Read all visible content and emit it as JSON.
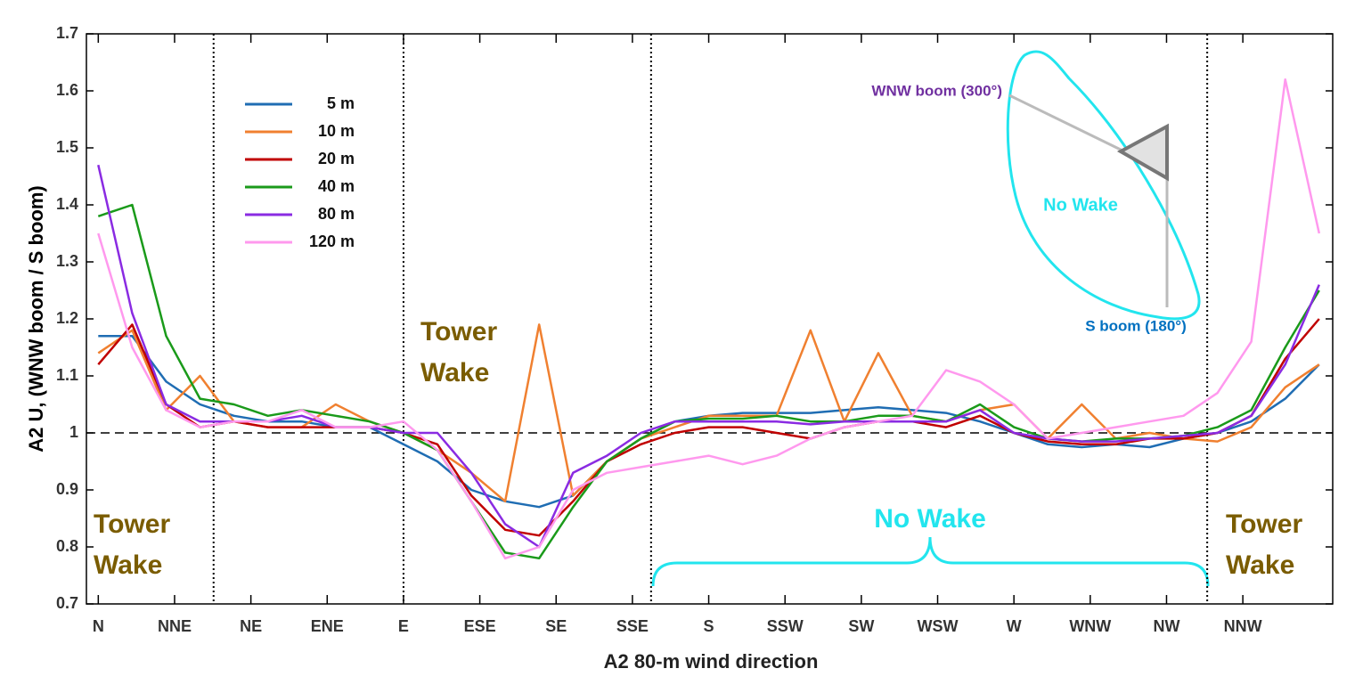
{
  "chart_data": {
    "type": "line",
    "ylabel": "A2 U, (WNW boom / S boom)",
    "xlabel": "A2 80-m wind direction",
    "xlim": [
      -3.5,
      364
    ],
    "ylim": [
      0.7,
      1.7
    ],
    "yticks": [
      0.7,
      0.8,
      0.9,
      1,
      1.1,
      1.2,
      1.3,
      1.4,
      1.5,
      1.6,
      1.7
    ],
    "xticks": [
      {
        "value": 0,
        "label": "N"
      },
      {
        "value": 22.5,
        "label": "NNE"
      },
      {
        "value": 45,
        "label": "NE"
      },
      {
        "value": 67.5,
        "label": "ENE"
      },
      {
        "value": 90,
        "label": "E"
      },
      {
        "value": 112.5,
        "label": "ESE"
      },
      {
        "value": 135,
        "label": "SE"
      },
      {
        "value": 157.5,
        "label": "SSE"
      },
      {
        "value": 180,
        "label": "S"
      },
      {
        "value": 202.5,
        "label": "SSW"
      },
      {
        "value": 225,
        "label": "SW"
      },
      {
        "value": 247.5,
        "label": "WSW"
      },
      {
        "value": 270,
        "label": "W"
      },
      {
        "value": 292.5,
        "label": "WNW"
      },
      {
        "value": 315,
        "label": "NW"
      },
      {
        "value": 337.5,
        "label": "NNW"
      }
    ],
    "grid": false,
    "legend": "upper left",
    "reference_line": 1,
    "sector_lines": [
      34,
      90,
      163,
      327
    ],
    "x": [
      0,
      10,
      20,
      30,
      40,
      50,
      60,
      70,
      80,
      90,
      100,
      110,
      120,
      130,
      140,
      150,
      160,
      170,
      180,
      190,
      200,
      210,
      220,
      230,
      240,
      250,
      260,
      270,
      280,
      290,
      300,
      310,
      320,
      330,
      340,
      350,
      360
    ],
    "series": [
      {
        "name": "5 m",
        "color": "#1f6db3",
        "values": [
          1.17,
          1.17,
          1.09,
          1.05,
          1.03,
          1.02,
          1.02,
          1.01,
          1.01,
          0.98,
          0.95,
          0.9,
          0.88,
          0.87,
          0.89,
          0.95,
          0.99,
          1.02,
          1.03,
          1.035,
          1.035,
          1.035,
          1.04,
          1.045,
          1.04,
          1.035,
          1.02,
          1.0,
          0.98,
          0.975,
          0.98,
          0.975,
          0.99,
          1.0,
          1.02,
          1.06,
          1.12
        ]
      },
      {
        "name": "10 m",
        "color": "#f08030",
        "values": [
          1.14,
          1.18,
          1.04,
          1.1,
          1.02,
          1.01,
          1.01,
          1.05,
          1.02,
          1.0,
          0.97,
          0.93,
          0.88,
          1.19,
          0.89,
          0.95,
          0.99,
          1.01,
          1.03,
          1.03,
          1.03,
          1.18,
          1.02,
          1.14,
          1.03,
          1.02,
          1.04,
          1.05,
          0.99,
          1.05,
          0.99,
          1.0,
          0.99,
          0.985,
          1.01,
          1.08,
          1.12
        ]
      },
      {
        "name": "20 m",
        "color": "#c00000",
        "values": [
          1.12,
          1.19,
          1.05,
          1.01,
          1.02,
          1.01,
          1.01,
          1.01,
          1.01,
          1.0,
          0.98,
          0.89,
          0.83,
          0.82,
          0.88,
          0.95,
          0.98,
          1.0,
          1.01,
          1.01,
          1.0,
          0.99,
          1.01,
          1.02,
          1.02,
          1.01,
          1.03,
          1.0,
          0.985,
          0.98,
          0.98,
          0.99,
          0.99,
          1.0,
          1.03,
          1.13,
          1.2
        ]
      },
      {
        "name": "40 m",
        "color": "#1a9a1a",
        "values": [
          1.38,
          1.4,
          1.17,
          1.06,
          1.05,
          1.03,
          1.04,
          1.03,
          1.02,
          1.0,
          0.97,
          0.88,
          0.79,
          0.78,
          0.87,
          0.95,
          0.99,
          1.02,
          1.025,
          1.025,
          1.03,
          1.02,
          1.02,
          1.03,
          1.03,
          1.02,
          1.05,
          1.01,
          0.99,
          0.985,
          0.99,
          0.99,
          0.995,
          1.01,
          1.04,
          1.15,
          1.25
        ]
      },
      {
        "name": "80 m",
        "color": "#8a2be2",
        "values": [
          1.47,
          1.21,
          1.05,
          1.02,
          1.02,
          1.02,
          1.03,
          1.01,
          1.01,
          1.0,
          1.0,
          0.93,
          0.84,
          0.8,
          0.93,
          0.96,
          1.0,
          1.02,
          1.02,
          1.02,
          1.02,
          1.015,
          1.02,
          1.02,
          1.02,
          1.02,
          1.04,
          1.0,
          0.99,
          0.985,
          0.985,
          0.99,
          0.995,
          1.0,
          1.03,
          1.12,
          1.26
        ]
      },
      {
        "name": "120 m",
        "color": "#ff99ee",
        "values": [
          1.35,
          1.15,
          1.04,
          1.01,
          1.02,
          1.02,
          1.04,
          1.01,
          1.01,
          1.02,
          0.97,
          0.88,
          0.78,
          0.8,
          0.9,
          0.93,
          0.94,
          0.95,
          0.96,
          0.945,
          0.96,
          0.99,
          1.01,
          1.02,
          1.03,
          1.11,
          1.09,
          1.05,
          0.99,
          1.0,
          1.01,
          1.02,
          1.03,
          1.07,
          1.16,
          1.62,
          1.35
        ]
      }
    ],
    "annotations": [
      "Tower Wake",
      "Tower Wake",
      "Tower Wake",
      "No Wake"
    ],
    "inset": {
      "upper_label": "WNW boom (300°)",
      "region_label": "No Wake",
      "lower_label": "S boom (180°)"
    }
  }
}
